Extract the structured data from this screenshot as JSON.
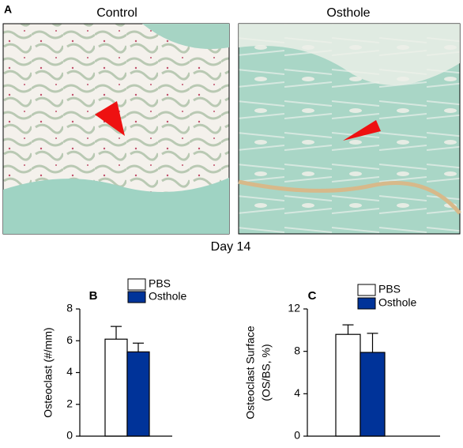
{
  "panel_a": {
    "label": "A",
    "images": [
      {
        "title": "Control"
      },
      {
        "title": "Osthole"
      }
    ],
    "caption": "Day 14"
  },
  "chart_data": [
    {
      "type": "bar",
      "panel": "B",
      "ylabel": "Osteoclast (#/mm)",
      "ylim": [
        0,
        8
      ],
      "yticks": [
        0,
        2,
        4,
        6,
        8
      ],
      "series": [
        {
          "name": "PBS",
          "color": "#ffffff",
          "values": [
            6.1
          ],
          "errors": [
            0.8
          ]
        },
        {
          "name": "Osthole",
          "color": "#003399",
          "values": [
            5.3
          ],
          "errors": [
            0.55
          ]
        }
      ]
    },
    {
      "type": "bar",
      "panel": "C",
      "ylabel": [
        "Osteoclast Surface",
        "(OS/BS, %)"
      ],
      "ylim": [
        0,
        12
      ],
      "yticks": [
        0,
        4,
        8,
        12
      ],
      "series": [
        {
          "name": "PBS",
          "color": "#ffffff",
          "values": [
            9.6
          ],
          "errors": [
            0.9
          ]
        },
        {
          "name": "Osthole",
          "color": "#003399",
          "values": [
            7.9
          ],
          "errors": [
            1.8
          ]
        }
      ]
    }
  ]
}
